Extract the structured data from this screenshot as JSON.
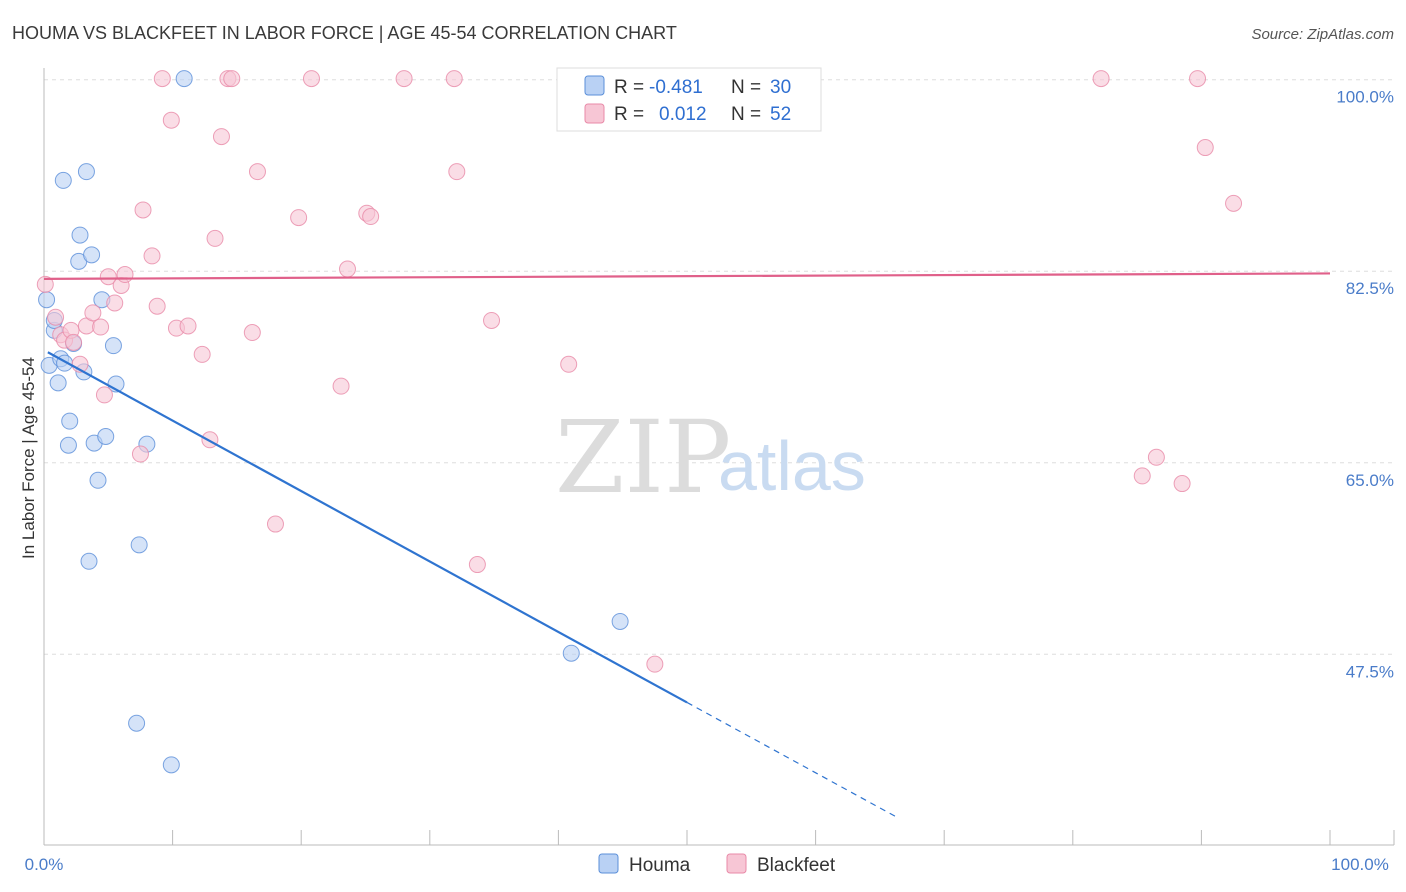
{
  "chart_data": {
    "type": "scatter",
    "title": "HOUMA VS BLACKFEET IN LABOR FORCE | AGE 45-54 CORRELATION CHART",
    "source": "Source: ZipAtlas.com",
    "xlabel": "",
    "ylabel": "In Labor Force | Age 45-54",
    "xlim": [
      0,
      100
    ],
    "ylim": [
      32.5,
      101.5
    ],
    "x_tick_labels": {
      "left": "0.0%",
      "right": "100.0%"
    },
    "y_ticks": [
      {
        "value": 100.0,
        "label": "100.0%"
      },
      {
        "value": 82.5,
        "label": "82.5%"
      },
      {
        "value": 65.0,
        "label": "65.0%"
      },
      {
        "value": 47.5,
        "label": "47.5%"
      }
    ],
    "grid": true,
    "legend_position": "top-center",
    "legend": [
      {
        "r_label": "R = ",
        "r_value": "-0.481",
        "n_label": "N = ",
        "n_value": "30"
      },
      {
        "r_label": "R = ",
        "r_value": "0.012",
        "n_label": "N = ",
        "n_value": "52"
      }
    ],
    "watermark": {
      "zip": "ZIP",
      "atlas": "atlas"
    },
    "series": [
      {
        "name": "Houma",
        "color": "#5b8fd9",
        "fill": "#b9d1f4",
        "trend": {
          "x0": 0.3,
          "y0": 75.1,
          "x1": 50.0,
          "y1": 43.1,
          "dash_to_x": 66.5,
          "dash_to_y": 32.5
        },
        "points": [
          {
            "x": 0.2,
            "y": 79.9
          },
          {
            "x": 0.4,
            "y": 73.9
          },
          {
            "x": 0.8,
            "y": 77.1
          },
          {
            "x": 0.8,
            "y": 78.0
          },
          {
            "x": 1.1,
            "y": 72.3
          },
          {
            "x": 1.3,
            "y": 74.5
          },
          {
            "x": 1.5,
            "y": 90.8
          },
          {
            "x": 1.6,
            "y": 74.1
          },
          {
            "x": 1.9,
            "y": 66.6
          },
          {
            "x": 2.0,
            "y": 68.8
          },
          {
            "x": 2.3,
            "y": 75.9
          },
          {
            "x": 2.7,
            "y": 83.4
          },
          {
            "x": 2.8,
            "y": 85.8
          },
          {
            "x": 3.1,
            "y": 73.3
          },
          {
            "x": 3.3,
            "y": 91.6
          },
          {
            "x": 3.5,
            "y": 56.0
          },
          {
            "x": 3.7,
            "y": 84.0
          },
          {
            "x": 3.9,
            "y": 66.8
          },
          {
            "x": 4.2,
            "y": 63.4
          },
          {
            "x": 4.5,
            "y": 79.9
          },
          {
            "x": 4.8,
            "y": 67.4
          },
          {
            "x": 5.4,
            "y": 75.7
          },
          {
            "x": 5.6,
            "y": 72.2
          },
          {
            "x": 7.2,
            "y": 41.2
          },
          {
            "x": 7.4,
            "y": 57.5
          },
          {
            "x": 8.0,
            "y": 66.7
          },
          {
            "x": 9.9,
            "y": 37.4
          },
          {
            "x": 10.9,
            "y": 100.1
          },
          {
            "x": 41.0,
            "y": 47.6
          },
          {
            "x": 44.8,
            "y": 50.5
          }
        ]
      },
      {
        "name": "Blackfeet",
        "color": "#e88aa8",
        "fill": "#f7c6d5",
        "trend": {
          "x0": 0.0,
          "y0": 81.8,
          "x1": 100.0,
          "y1": 82.3
        },
        "points": [
          {
            "x": 0.1,
            "y": 81.3
          },
          {
            "x": 0.9,
            "y": 78.3
          },
          {
            "x": 1.3,
            "y": 76.7
          },
          {
            "x": 1.6,
            "y": 76.2
          },
          {
            "x": 2.1,
            "y": 77.1
          },
          {
            "x": 2.3,
            "y": 76.0
          },
          {
            "x": 2.8,
            "y": 74.0
          },
          {
            "x": 3.3,
            "y": 77.5
          },
          {
            "x": 3.8,
            "y": 78.7
          },
          {
            "x": 4.4,
            "y": 77.4
          },
          {
            "x": 4.7,
            "y": 71.2
          },
          {
            "x": 5.0,
            "y": 82.0
          },
          {
            "x": 5.5,
            "y": 79.6
          },
          {
            "x": 6.0,
            "y": 81.2
          },
          {
            "x": 6.3,
            "y": 82.2
          },
          {
            "x": 7.5,
            "y": 65.8
          },
          {
            "x": 7.7,
            "y": 88.1
          },
          {
            "x": 8.4,
            "y": 83.9
          },
          {
            "x": 8.8,
            "y": 79.3
          },
          {
            "x": 9.2,
            "y": 100.1
          },
          {
            "x": 9.9,
            "y": 96.3
          },
          {
            "x": 10.3,
            "y": 77.3
          },
          {
            "x": 11.2,
            "y": 77.5
          },
          {
            "x": 12.3,
            "y": 74.9
          },
          {
            "x": 12.9,
            "y": 67.1
          },
          {
            "x": 13.3,
            "y": 85.5
          },
          {
            "x": 13.8,
            "y": 94.8
          },
          {
            "x": 14.3,
            "y": 100.1
          },
          {
            "x": 14.6,
            "y": 100.1
          },
          {
            "x": 16.2,
            "y": 76.9
          },
          {
            "x": 16.6,
            "y": 91.6
          },
          {
            "x": 18.0,
            "y": 59.4
          },
          {
            "x": 19.8,
            "y": 87.4
          },
          {
            "x": 20.8,
            "y": 100.1
          },
          {
            "x": 23.1,
            "y": 72.0
          },
          {
            "x": 23.6,
            "y": 82.7
          },
          {
            "x": 25.1,
            "y": 87.8
          },
          {
            "x": 25.4,
            "y": 87.5
          },
          {
            "x": 28.0,
            "y": 100.1
          },
          {
            "x": 31.9,
            "y": 100.1
          },
          {
            "x": 32.1,
            "y": 91.6
          },
          {
            "x": 33.7,
            "y": 55.7
          },
          {
            "x": 34.8,
            "y": 78.0
          },
          {
            "x": 40.8,
            "y": 74.0
          },
          {
            "x": 47.5,
            "y": 46.6
          },
          {
            "x": 82.2,
            "y": 100.1
          },
          {
            "x": 85.4,
            "y": 63.8
          },
          {
            "x": 86.5,
            "y": 65.5
          },
          {
            "x": 88.5,
            "y": 63.1
          },
          {
            "x": 89.7,
            "y": 100.1
          },
          {
            "x": 90.3,
            "y": 93.8
          },
          {
            "x": 92.5,
            "y": 88.7
          }
        ]
      }
    ]
  }
}
